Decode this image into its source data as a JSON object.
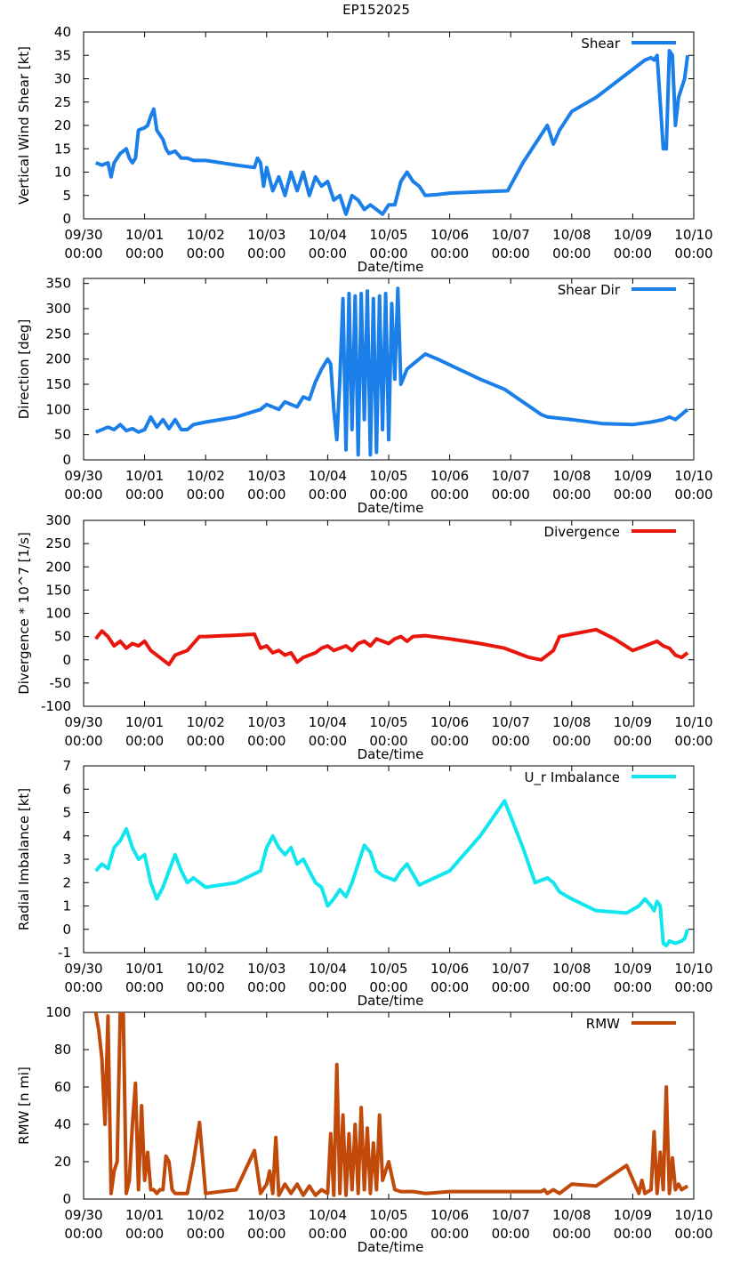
{
  "page_title": "EP152025",
  "chart_data": [
    {
      "type": "line",
      "ylabel": "Vertical Wind Shear [kt]",
      "xlabel": "Date/time",
      "legend": "Shear",
      "legend_position": "top-right",
      "color": "#1a7fe8",
      "xlim": [
        0,
        10
      ],
      "ylim": [
        0,
        40
      ],
      "yticks": [
        0,
        5,
        10,
        15,
        20,
        25,
        30,
        35,
        40
      ],
      "x": [
        0.2,
        0.3,
        0.4,
        0.45,
        0.5,
        0.6,
        0.7,
        0.75,
        0.8,
        0.85,
        0.9,
        1.0,
        1.05,
        1.1,
        1.15,
        1.2,
        1.3,
        1.35,
        1.4,
        1.5,
        1.6,
        1.7,
        1.8,
        1.9,
        2.0,
        2.5,
        2.8,
        2.85,
        2.9,
        2.95,
        3.0,
        3.1,
        3.2,
        3.3,
        3.4,
        3.5,
        3.6,
        3.7,
        3.8,
        3.9,
        4.0,
        4.1,
        4.2,
        4.3,
        4.4,
        4.5,
        4.6,
        4.7,
        4.8,
        4.9,
        5.0,
        5.1,
        5.2,
        5.3,
        5.4,
        5.5,
        5.6,
        5.8,
        6.0,
        6.5,
        6.95,
        7.2,
        7.5,
        7.6,
        7.7,
        7.8,
        8.0,
        8.4,
        8.6,
        9.0,
        9.2,
        9.3,
        9.35,
        9.4,
        9.45,
        9.5,
        9.55,
        9.6,
        9.65,
        9.7,
        9.75,
        9.8,
        9.85,
        9.9
      ],
      "y": [
        12,
        11.5,
        12,
        9,
        12,
        14,
        15,
        13,
        12,
        13,
        19,
        19.5,
        20,
        22,
        23.5,
        19,
        17,
        15,
        14,
        14.5,
        13,
        13,
        12.5,
        12.5,
        12.5,
        11.5,
        11,
        13,
        12,
        7,
        11,
        6,
        9,
        5,
        10,
        6,
        10,
        5,
        9,
        7,
        8,
        4,
        5,
        1,
        5,
        4,
        2,
        3,
        2,
        1,
        3,
        3,
        8,
        10,
        8,
        7,
        5,
        5.2,
        5.5,
        5.8,
        6,
        12,
        18,
        20,
        16,
        19,
        23,
        26,
        28,
        32,
        34,
        34.5,
        34,
        35,
        25,
        15,
        15,
        36,
        35,
        20,
        26,
        28,
        30,
        35
      ]
    },
    {
      "type": "line",
      "ylabel": "Direction [deg]",
      "xlabel": "Date/time",
      "legend": "Shear Dir",
      "legend_position": "top-right",
      "color": "#1a7fe8",
      "xlim": [
        0,
        10
      ],
      "ylim": [
        0,
        360
      ],
      "yticks": [
        0,
        50,
        100,
        150,
        200,
        250,
        300,
        350
      ],
      "x": [
        0.2,
        0.4,
        0.5,
        0.6,
        0.7,
        0.8,
        0.9,
        1.0,
        1.1,
        1.2,
        1.3,
        1.4,
        1.5,
        1.6,
        1.7,
        1.8,
        2.0,
        2.5,
        2.9,
        3.0,
        3.2,
        3.3,
        3.5,
        3.6,
        3.7,
        3.8,
        3.9,
        4.0,
        4.05,
        4.1,
        4.15,
        4.2,
        4.25,
        4.3,
        4.35,
        4.4,
        4.45,
        4.5,
        4.55,
        4.6,
        4.65,
        4.7,
        4.75,
        4.8,
        4.85,
        4.9,
        4.95,
        5.0,
        5.05,
        5.1,
        5.15,
        5.2,
        5.3,
        5.4,
        5.6,
        5.8,
        6.5,
        6.9,
        7.5,
        7.6,
        8.0,
        8.5,
        9.0,
        9.3,
        9.5,
        9.6,
        9.7,
        9.9
      ],
      "y": [
        55,
        65,
        60,
        70,
        58,
        62,
        55,
        60,
        85,
        65,
        80,
        62,
        80,
        60,
        60,
        70,
        75,
        85,
        100,
        110,
        100,
        115,
        105,
        125,
        120,
        155,
        180,
        200,
        190,
        100,
        40,
        160,
        320,
        20,
        330,
        60,
        325,
        10,
        330,
        80,
        335,
        10,
        320,
        15,
        325,
        60,
        330,
        40,
        310,
        160,
        340,
        150,
        180,
        190,
        210,
        200,
        160,
        140,
        90,
        85,
        80,
        72,
        70,
        75,
        80,
        85,
        80,
        100
      ]
    },
    {
      "type": "line",
      "ylabel": "Divergence * 10^7 [1/s]",
      "xlabel": "Date/time",
      "legend": "Divergence",
      "legend_position": "top-right",
      "color": "#e8160c",
      "xlim": [
        0,
        10
      ],
      "ylim": [
        -100,
        300
      ],
      "yticks": [
        -100,
        -50,
        0,
        50,
        100,
        150,
        200,
        250,
        300
      ],
      "x": [
        0.2,
        0.3,
        0.4,
        0.5,
        0.6,
        0.7,
        0.8,
        0.9,
        1.0,
        1.1,
        1.2,
        1.3,
        1.4,
        1.5,
        1.6,
        1.7,
        1.9,
        2.0,
        2.5,
        2.8,
        2.9,
        3.0,
        3.1,
        3.2,
        3.3,
        3.4,
        3.5,
        3.6,
        3.7,
        3.8,
        3.9,
        4.0,
        4.1,
        4.2,
        4.3,
        4.4,
        4.5,
        4.6,
        4.7,
        4.8,
        4.9,
        5.0,
        5.1,
        5.2,
        5.3,
        5.4,
        5.6,
        6.0,
        6.5,
        6.9,
        7.3,
        7.5,
        7.6,
        7.7,
        7.8,
        8.0,
        8.4,
        8.7,
        9.0,
        9.1,
        9.3,
        9.4,
        9.5,
        9.6,
        9.7,
        9.8,
        9.9
      ],
      "y": [
        45,
        62,
        50,
        30,
        40,
        25,
        35,
        30,
        40,
        20,
        10,
        0,
        -10,
        10,
        15,
        20,
        50,
        50,
        53,
        55,
        25,
        30,
        15,
        20,
        10,
        15,
        -5,
        5,
        10,
        15,
        25,
        30,
        20,
        25,
        30,
        20,
        35,
        40,
        30,
        45,
        40,
        35,
        45,
        50,
        40,
        50,
        52,
        45,
        35,
        25,
        5,
        0,
        10,
        20,
        50,
        55,
        65,
        45,
        20,
        25,
        35,
        40,
        30,
        25,
        10,
        5,
        15
      ]
    },
    {
      "type": "line",
      "ylabel": "Radial Imbalance [kt]",
      "xlabel": "Date/time",
      "legend": "U_r Imbalance",
      "legend_position": "top-right",
      "color": "#11e6ee",
      "xlim": [
        0,
        10
      ],
      "ylim": [
        -1,
        7
      ],
      "yticks": [
        -1,
        0,
        1,
        2,
        3,
        4,
        5,
        6,
        7
      ],
      "x": [
        0.2,
        0.3,
        0.4,
        0.5,
        0.6,
        0.7,
        0.8,
        0.9,
        1.0,
        1.1,
        1.2,
        1.3,
        1.4,
        1.5,
        1.6,
        1.7,
        1.8,
        2.0,
        2.5,
        2.9,
        3.0,
        3.1,
        3.2,
        3.3,
        3.4,
        3.5,
        3.6,
        3.7,
        3.8,
        3.9,
        4.0,
        4.1,
        4.2,
        4.3,
        4.4,
        4.5,
        4.6,
        4.7,
        4.8,
        4.9,
        5.0,
        5.1,
        5.2,
        5.3,
        5.5,
        6.0,
        6.5,
        6.9,
        7.2,
        7.4,
        7.5,
        7.6,
        7.7,
        7.8,
        8.0,
        8.4,
        8.9,
        9.1,
        9.2,
        9.3,
        9.35,
        9.4,
        9.45,
        9.5,
        9.55,
        9.6,
        9.7,
        9.8,
        9.85,
        9.9
      ],
      "y": [
        2.5,
        2.8,
        2.6,
        3.5,
        3.8,
        4.3,
        3.5,
        3.0,
        3.2,
        2.0,
        1.3,
        1.8,
        2.5,
        3.2,
        2.5,
        2.0,
        2.2,
        1.8,
        2.0,
        2.5,
        3.5,
        4.0,
        3.5,
        3.2,
        3.5,
        2.8,
        3.0,
        2.5,
        2.0,
        1.8,
        1.0,
        1.3,
        1.7,
        1.4,
        2.0,
        2.8,
        3.6,
        3.3,
        2.5,
        2.3,
        2.2,
        2.1,
        2.5,
        2.8,
        1.9,
        2.5,
        4.0,
        5.5,
        3.5,
        2.0,
        2.1,
        2.2,
        2.0,
        1.6,
        1.3,
        0.8,
        0.7,
        1.0,
        1.3,
        1.0,
        0.8,
        1.2,
        1.0,
        -0.6,
        -0.7,
        -0.5,
        -0.6,
        -0.5,
        -0.4,
        0.0
      ]
    },
    {
      "type": "line",
      "ylabel": "RMW [n mi]",
      "xlabel": "Date/time",
      "legend": "RMW",
      "legend_position": "top-right",
      "color": "#c14a0a",
      "xlim": [
        0,
        10
      ],
      "ylim": [
        0,
        100
      ],
      "yticks": [
        0,
        20,
        40,
        60,
        80,
        100
      ],
      "x": [
        0.2,
        0.25,
        0.3,
        0.35,
        0.4,
        0.45,
        0.5,
        0.55,
        0.6,
        0.65,
        0.7,
        0.75,
        0.8,
        0.85,
        0.9,
        0.95,
        1.0,
        1.05,
        1.1,
        1.15,
        1.2,
        1.25,
        1.3,
        1.35,
        1.4,
        1.45,
        1.5,
        1.55,
        1.6,
        1.7,
        1.8,
        1.9,
        2.0,
        2.5,
        2.8,
        2.9,
        3.0,
        3.05,
        3.1,
        3.15,
        3.2,
        3.3,
        3.4,
        3.5,
        3.6,
        3.7,
        3.8,
        3.9,
        4.0,
        4.05,
        4.1,
        4.15,
        4.2,
        4.25,
        4.3,
        4.35,
        4.4,
        4.45,
        4.5,
        4.55,
        4.6,
        4.65,
        4.7,
        4.75,
        4.8,
        4.85,
        4.9,
        5.0,
        5.1,
        5.2,
        5.3,
        5.4,
        5.6,
        6.0,
        6.9,
        7.5,
        7.55,
        7.6,
        7.7,
        7.8,
        8.0,
        8.4,
        8.9,
        9.1,
        9.15,
        9.2,
        9.3,
        9.35,
        9.4,
        9.45,
        9.5,
        9.55,
        9.6,
        9.65,
        9.7,
        9.75,
        9.8,
        9.85,
        9.9
      ],
      "y": [
        100,
        90,
        75,
        40,
        98,
        3,
        15,
        20,
        100,
        100,
        3,
        10,
        40,
        62,
        5,
        50,
        10,
        25,
        5,
        5,
        3,
        5,
        5,
        23,
        20,
        5,
        3,
        3,
        3,
        3,
        20,
        41,
        3,
        5,
        26,
        3,
        8,
        15,
        3,
        33,
        2,
        8,
        3,
        8,
        2,
        7,
        2,
        5,
        3,
        35,
        2,
        72,
        3,
        45,
        2,
        35,
        5,
        40,
        3,
        49,
        5,
        38,
        3,
        30,
        5,
        45,
        10,
        20,
        5,
        4,
        4,
        4,
        3,
        4,
        4,
        4,
        5,
        3,
        5,
        3,
        8,
        7,
        18,
        3,
        10,
        3,
        5,
        36,
        3,
        25,
        5,
        60,
        3,
        22,
        5,
        8,
        5,
        6,
        7
      ]
    }
  ]
}
